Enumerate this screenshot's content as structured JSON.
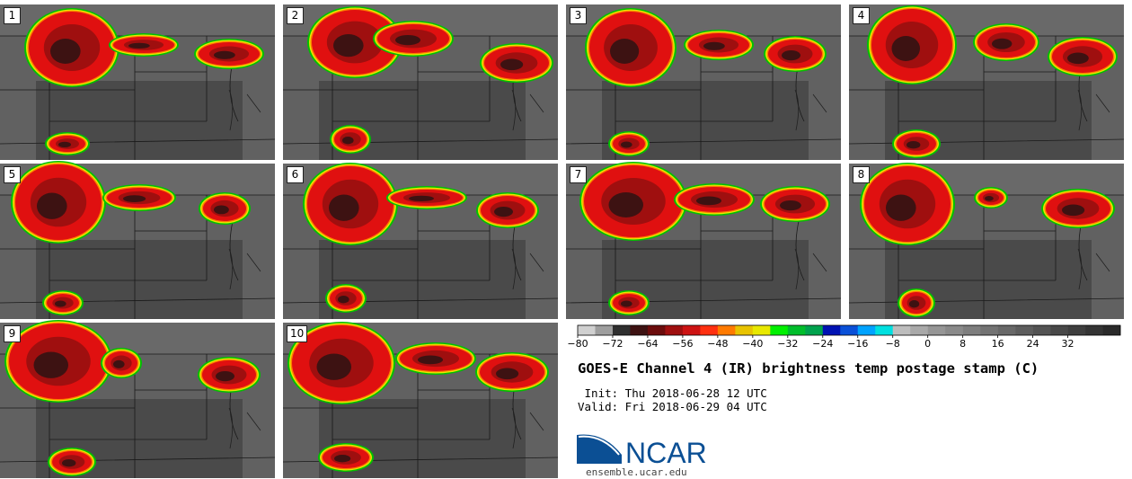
{
  "panels": [
    {
      "label": "1",
      "row": 0,
      "col": 0,
      "main": [
        80,
        48,
        48,
        40
      ],
      "blobs": [
        [
          160,
          45,
          34,
          9
        ],
        [
          255,
          55,
          34,
          13
        ],
        [
          75,
          155,
          20,
          9
        ]
      ]
    },
    {
      "label": "2",
      "row": 0,
      "col": 1,
      "main": [
        80,
        42,
        48,
        36
      ],
      "blobs": [
        [
          145,
          38,
          40,
          16
        ],
        [
          260,
          65,
          36,
          18
        ],
        [
          75,
          150,
          18,
          12
        ]
      ]
    },
    {
      "label": "3",
      "row": 0,
      "col": 2,
      "main": [
        72,
        48,
        46,
        40
      ],
      "blobs": [
        [
          170,
          45,
          34,
          13
        ],
        [
          255,
          55,
          30,
          16
        ],
        [
          70,
          155,
          18,
          10
        ]
      ]
    },
    {
      "label": "4",
      "row": 0,
      "col": 3,
      "main": [
        70,
        45,
        45,
        40
      ],
      "blobs": [
        [
          175,
          42,
          32,
          17
        ],
        [
          260,
          58,
          34,
          18
        ],
        [
          75,
          155,
          22,
          12
        ]
      ]
    },
    {
      "label": "5",
      "row": 1,
      "col": 0,
      "main": [
        65,
        43,
        48,
        42
      ],
      "blobs": [
        [
          155,
          38,
          36,
          11
        ],
        [
          250,
          50,
          24,
          14
        ],
        [
          70,
          155,
          18,
          10
        ]
      ]
    },
    {
      "label": "6",
      "row": 1,
      "col": 1,
      "main": [
        75,
        45,
        48,
        42
      ],
      "blobs": [
        [
          160,
          38,
          40,
          9
        ],
        [
          250,
          52,
          30,
          16
        ],
        [
          70,
          150,
          18,
          12
        ]
      ]
    },
    {
      "label": "7",
      "row": 1,
      "col": 2,
      "main": [
        75,
        42,
        55,
        40
      ],
      "blobs": [
        [
          165,
          40,
          40,
          14
        ],
        [
          255,
          45,
          34,
          16
        ],
        [
          70,
          155,
          18,
          10
        ]
      ]
    },
    {
      "label": "8",
      "row": 1,
      "col": 3,
      "main": [
        65,
        45,
        48,
        42
      ],
      "blobs": [
        [
          158,
          38,
          14,
          8
        ],
        [
          255,
          50,
          36,
          18
        ],
        [
          75,
          155,
          16,
          12
        ]
      ]
    },
    {
      "label": "9",
      "row": 2,
      "col": 0,
      "main": [
        65,
        43,
        55,
        42
      ],
      "blobs": [
        [
          135,
          45,
          18,
          13
        ],
        [
          255,
          58,
          30,
          16
        ],
        [
          80,
          155,
          22,
          12
        ]
      ]
    },
    {
      "label": "10",
      "row": 2,
      "col": 1,
      "main": [
        65,
        45,
        55,
        42
      ],
      "blobs": [
        [
          170,
          40,
          40,
          14
        ],
        [
          255,
          55,
          36,
          18
        ],
        [
          70,
          150,
          26,
          12
        ]
      ]
    }
  ],
  "colorbar": {
    "colors": [
      "#d0d0d0",
      "#9e9e9e",
      "#2f2f2f",
      "#3d1212",
      "#6b0c0c",
      "#9f0f0f",
      "#cd1313",
      "#ff3010",
      "#ff7a00",
      "#e8c300",
      "#e8e800",
      "#00f000",
      "#00bd2b",
      "#00a24d",
      "#0012b3",
      "#0a50d8",
      "#00a3ff",
      "#00e0e0",
      "#bdbdbd",
      "#a9a9a9",
      "#969696",
      "#8a8a8a",
      "#7e7e7e",
      "#737373",
      "#686868",
      "#5d5d5d",
      "#535353",
      "#484848",
      "#3e3e3e",
      "#343434",
      "#2a2a2a"
    ],
    "ticks": [
      "−80",
      "−72",
      "−64",
      "−56",
      "−48",
      "−40",
      "−32",
      "−24",
      "−16",
      "−8",
      "0",
      "8",
      "16",
      "24",
      "32"
    ]
  },
  "title": "GOES-E Channel 4 (IR) brightness temp postage stamp (C)",
  "init_line": " Init: Thu 2018-06-28 12 UTC",
  "valid_line": "Valid: Fri 2018-06-29 04 UTC",
  "logo_text": "NCAR",
  "site": "ensemble.ucar.edu"
}
